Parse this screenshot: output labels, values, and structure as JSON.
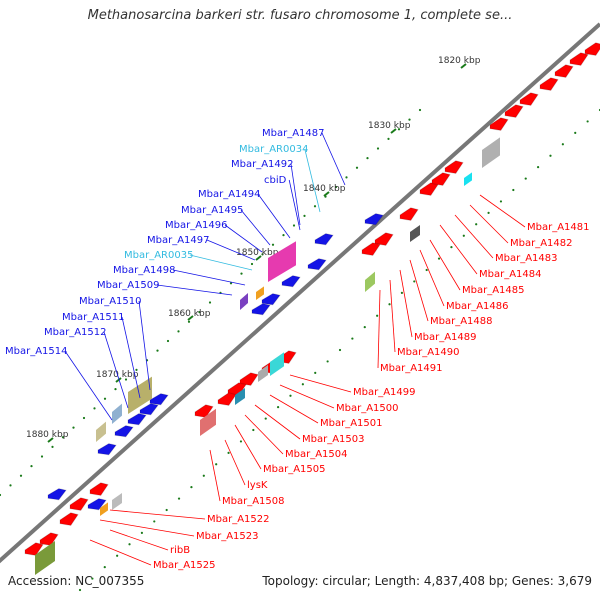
{
  "title": "Methanosarcina barkeri str. fusaro chromosome 1, complete se...",
  "accession": "Accession: NC_007355",
  "topology": "Topology: circular; Length: 4,837,408 bp; Genes: 3,679",
  "colors": {
    "backbone": "#777777",
    "left_gene": "#1414e6",
    "right_gene": "#ff0000",
    "rna_label": "#33bbe0",
    "tick": "#1a7a1a"
  },
  "kbp_ticks": [
    "1820 kbp",
    "1830 kbp",
    "1840 kbp",
    "1850 kbp",
    "1860 kbp",
    "1870 kbp",
    "1880 kbp"
  ],
  "left_labels": [
    {
      "text": "Mbar_A1487",
      "kind": "gene"
    },
    {
      "text": "Mbar_AR0034",
      "kind": "rna"
    },
    {
      "text": "Mbar_A1492",
      "kind": "gene"
    },
    {
      "text": "cbiD",
      "kind": "gene"
    },
    {
      "text": "Mbar_A1494",
      "kind": "gene"
    },
    {
      "text": "Mbar_A1495",
      "kind": "gene"
    },
    {
      "text": "Mbar_A1496",
      "kind": "gene"
    },
    {
      "text": "Mbar_A1497",
      "kind": "gene"
    },
    {
      "text": "Mbar_AR0035",
      "kind": "rna"
    },
    {
      "text": "Mbar_A1498",
      "kind": "gene"
    },
    {
      "text": "Mbar_A1509",
      "kind": "gene"
    },
    {
      "text": "Mbar_A1510",
      "kind": "gene"
    },
    {
      "text": "Mbar_A1511",
      "kind": "gene"
    },
    {
      "text": "Mbar_A1512",
      "kind": "gene"
    },
    {
      "text": "Mbar_A1514",
      "kind": "gene"
    }
  ],
  "right_labels": [
    "Mbar_A1481",
    "Mbar_A1482",
    "Mbar_A1483",
    "Mbar_A1484",
    "Mbar_A1485",
    "Mbar_A1486",
    "Mbar_A1488",
    "Mbar_A1489",
    "Mbar_A1490",
    "Mbar_A1491",
    "Mbar_A1499",
    "Mbar_A1500",
    "Mbar_A1501",
    "Mbar_A1503",
    "Mbar_A1504",
    "Mbar_A1505",
    "lysK",
    "Mbar_A1508",
    "Mbar_A1522",
    "Mbar_A1523",
    "ribB",
    "Mbar_A1525"
  ]
}
